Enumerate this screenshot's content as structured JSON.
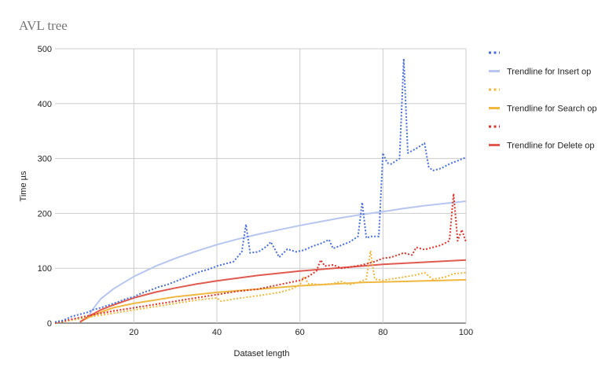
{
  "chart_data": {
    "type": "line",
    "title": "AVL tree",
    "xlabel": "Dataset length",
    "ylabel": "Time µs",
    "xlim": [
      1,
      100
    ],
    "ylim": [
      0,
      500
    ],
    "x_ticks": [
      "20",
      "40",
      "60",
      "80",
      "100"
    ],
    "y_ticks": [
      "0",
      "100",
      "200",
      "300",
      "400",
      "500"
    ],
    "grid": true,
    "legend_position": "right",
    "legend": [
      {
        "label": "",
        "style": "dotted",
        "color": "#4a6fd8"
      },
      {
        "label": "Trendline for Insert op",
        "style": "solid",
        "color": "#b6c6f0"
      },
      {
        "label": "",
        "style": "dotted",
        "color": "#f0b840"
      },
      {
        "label": "Trendline for Search op",
        "style": "solid",
        "color": "#f0b840"
      },
      {
        "label": "",
        "style": "dotted",
        "color": "#d9342b"
      },
      {
        "label": "Trendline for Delete op",
        "style": "solid",
        "color": "#e05a50"
      }
    ],
    "series": [
      {
        "id": "insert",
        "color": "#4a6fd8",
        "style": "dotted",
        "points": [
          [
            1,
            2
          ],
          [
            3,
            5
          ],
          [
            5,
            12
          ],
          [
            7,
            16
          ],
          [
            9,
            20
          ],
          [
            10,
            24
          ],
          [
            12,
            28
          ],
          [
            14,
            33
          ],
          [
            16,
            38
          ],
          [
            18,
            44
          ],
          [
            20,
            48
          ],
          [
            22,
            55
          ],
          [
            24,
            60
          ],
          [
            26,
            66
          ],
          [
            28,
            70
          ],
          [
            30,
            76
          ],
          [
            32,
            82
          ],
          [
            34,
            88
          ],
          [
            36,
            94
          ],
          [
            38,
            98
          ],
          [
            40,
            104
          ],
          [
            42,
            108
          ],
          [
            44,
            112
          ],
          [
            46,
            130
          ],
          [
            47,
            180
          ],
          [
            48,
            128
          ],
          [
            50,
            130
          ],
          [
            52,
            140
          ],
          [
            53,
            148
          ],
          [
            55,
            120
          ],
          [
            57,
            135
          ],
          [
            59,
            130
          ],
          [
            61,
            133
          ],
          [
            63,
            140
          ],
          [
            65,
            145
          ],
          [
            67,
            152
          ],
          [
            68,
            136
          ],
          [
            70,
            142
          ],
          [
            72,
            148
          ],
          [
            74,
            158
          ],
          [
            75,
            220
          ],
          [
            76,
            155
          ],
          [
            77,
            158
          ],
          [
            79,
            158
          ],
          [
            80,
            310
          ],
          [
            81,
            292
          ],
          [
            82,
            290
          ],
          [
            84,
            300
          ],
          [
            85,
            482
          ],
          [
            86,
            310
          ],
          [
            88,
            318
          ],
          [
            90,
            328
          ],
          [
            91,
            285
          ],
          [
            92,
            278
          ],
          [
            94,
            282
          ],
          [
            96,
            290
          ],
          [
            98,
            296
          ],
          [
            100,
            302
          ]
        ]
      },
      {
        "id": "insert_trend",
        "color": "#b6c6f0",
        "style": "solid",
        "points": [
          [
            9,
            12
          ],
          [
            10,
            24
          ],
          [
            12,
            44
          ],
          [
            15,
            62
          ],
          [
            20,
            85
          ],
          [
            25,
            103
          ],
          [
            30,
            118
          ],
          [
            35,
            131
          ],
          [
            40,
            143
          ],
          [
            45,
            153
          ],
          [
            50,
            162
          ],
          [
            55,
            170
          ],
          [
            60,
            178
          ],
          [
            65,
            185
          ],
          [
            70,
            192
          ],
          [
            75,
            198
          ],
          [
            80,
            203
          ],
          [
            85,
            209
          ],
          [
            90,
            214
          ],
          [
            95,
            218
          ],
          [
            100,
            222
          ]
        ]
      },
      {
        "id": "search",
        "color": "#f0b840",
        "style": "dotted",
        "points": [
          [
            1,
            0
          ],
          [
            5,
            5
          ],
          [
            10,
            12
          ],
          [
            15,
            18
          ],
          [
            20,
            24
          ],
          [
            25,
            30
          ],
          [
            30,
            36
          ],
          [
            35,
            42
          ],
          [
            40,
            46
          ],
          [
            41,
            40
          ],
          [
            45,
            45
          ],
          [
            50,
            50
          ],
          [
            55,
            56
          ],
          [
            58,
            62
          ],
          [
            60,
            70
          ],
          [
            61,
            85
          ],
          [
            62,
            72
          ],
          [
            65,
            70
          ],
          [
            68,
            72
          ],
          [
            70,
            76
          ],
          [
            72,
            70
          ],
          [
            74,
            74
          ],
          [
            76,
            80
          ],
          [
            77,
            132
          ],
          [
            78,
            80
          ],
          [
            80,
            78
          ],
          [
            85,
            84
          ],
          [
            88,
            88
          ],
          [
            90,
            92
          ],
          [
            92,
            80
          ],
          [
            95,
            84
          ],
          [
            97,
            90
          ],
          [
            100,
            92
          ]
        ]
      },
      {
        "id": "search_trend",
        "color": "#f0b840",
        "style": "solid",
        "points": [
          [
            7,
            2
          ],
          [
            9,
            10
          ],
          [
            12,
            20
          ],
          [
            15,
            28
          ],
          [
            20,
            36
          ],
          [
            25,
            42
          ],
          [
            30,
            48
          ],
          [
            35,
            52
          ],
          [
            40,
            56
          ],
          [
            45,
            59
          ],
          [
            50,
            62
          ],
          [
            55,
            65
          ],
          [
            60,
            68
          ],
          [
            65,
            70
          ],
          [
            70,
            72
          ],
          [
            75,
            74
          ],
          [
            80,
            75
          ],
          [
            85,
            76
          ],
          [
            90,
            77
          ],
          [
            95,
            78
          ],
          [
            100,
            79
          ]
        ]
      },
      {
        "id": "delete",
        "color": "#d9342b",
        "style": "dotted",
        "points": [
          [
            1,
            0
          ],
          [
            5,
            7
          ],
          [
            10,
            15
          ],
          [
            15,
            22
          ],
          [
            20,
            28
          ],
          [
            25,
            34
          ],
          [
            30,
            40
          ],
          [
            35,
            46
          ],
          [
            40,
            52
          ],
          [
            45,
            58
          ],
          [
            50,
            62
          ],
          [
            55,
            70
          ],
          [
            60,
            78
          ],
          [
            62,
            85
          ],
          [
            64,
            95
          ],
          [
            65,
            115
          ],
          [
            66,
            104
          ],
          [
            68,
            106
          ],
          [
            70,
            100
          ],
          [
            72,
            102
          ],
          [
            75,
            106
          ],
          [
            78,
            112
          ],
          [
            80,
            118
          ],
          [
            82,
            120
          ],
          [
            85,
            128
          ],
          [
            87,
            124
          ],
          [
            88,
            138
          ],
          [
            90,
            134
          ],
          [
            92,
            138
          ],
          [
            94,
            142
          ],
          [
            96,
            150
          ],
          [
            97,
            236
          ],
          [
            98,
            150
          ],
          [
            99,
            170
          ],
          [
            100,
            148
          ]
        ]
      },
      {
        "id": "delete_trend",
        "color": "#e05a50",
        "style": "solid",
        "points": [
          [
            7,
            2
          ],
          [
            9,
            12
          ],
          [
            12,
            24
          ],
          [
            15,
            33
          ],
          [
            20,
            46
          ],
          [
            25,
            56
          ],
          [
            30,
            64
          ],
          [
            35,
            71
          ],
          [
            40,
            77
          ],
          [
            45,
            82
          ],
          [
            50,
            87
          ],
          [
            55,
            91
          ],
          [
            60,
            95
          ],
          [
            65,
            98
          ],
          [
            70,
            101
          ],
          [
            75,
            104
          ],
          [
            80,
            107
          ],
          [
            85,
            109
          ],
          [
            90,
            111
          ],
          [
            95,
            113
          ],
          [
            100,
            115
          ]
        ]
      }
    ]
  }
}
